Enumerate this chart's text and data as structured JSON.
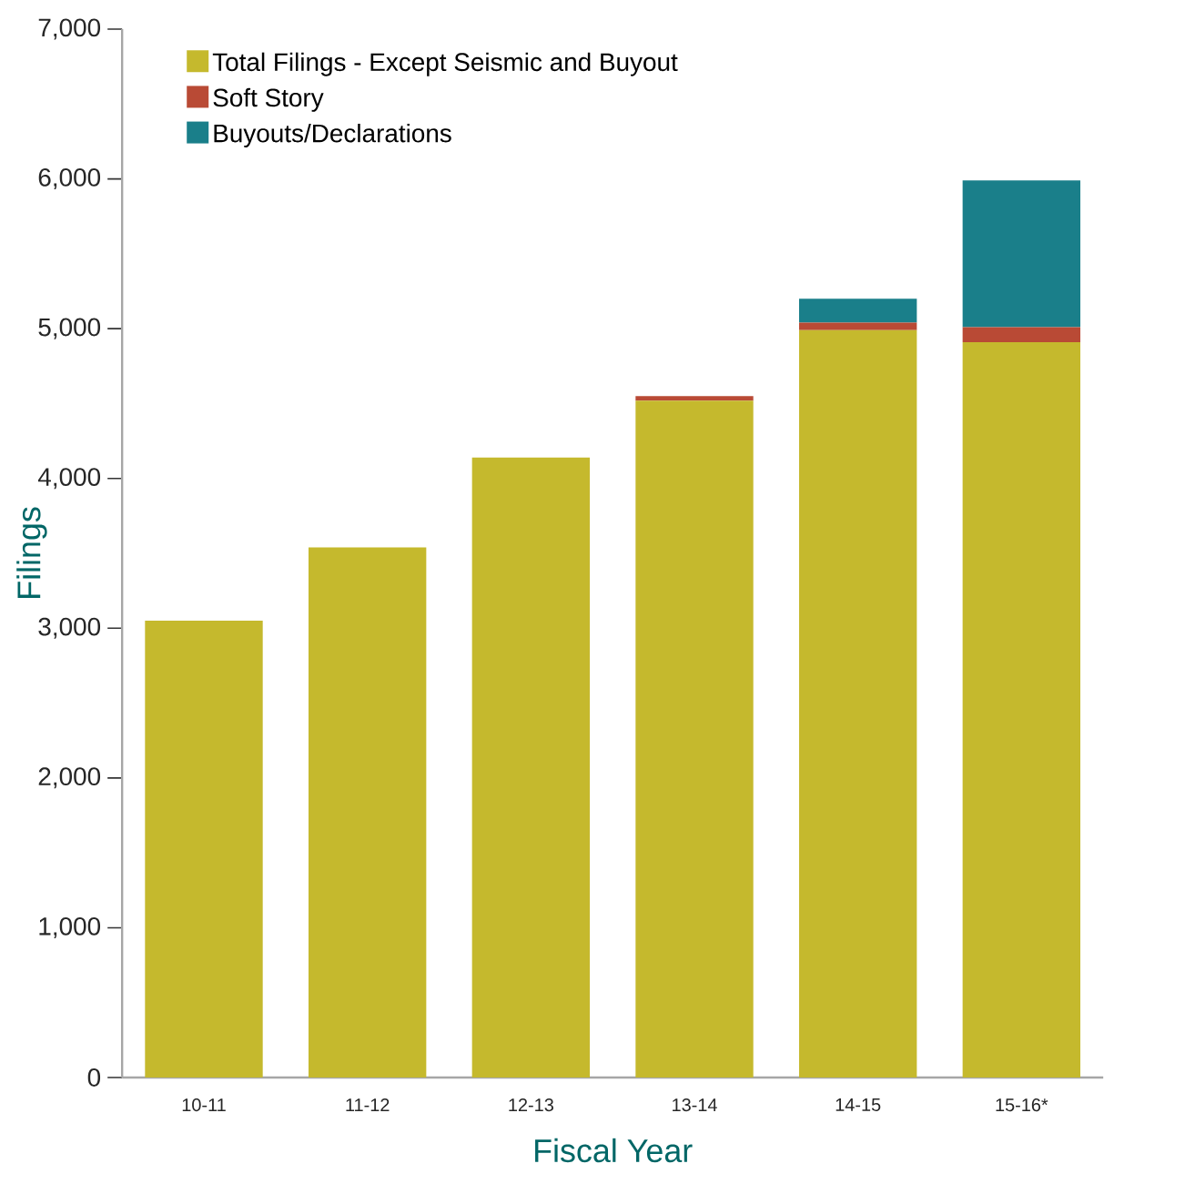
{
  "chart_data": {
    "type": "bar",
    "stacked": true,
    "xlabel": "Fiscal Year",
    "ylabel": "Filings",
    "categories": [
      "10-11",
      "11-12",
      "12-13",
      "13-14",
      "14-15",
      "15-16*"
    ],
    "series": [
      {
        "name": "Total Filings - Except Seismic and Buyout",
        "color": "#c5b92d",
        "values": [
          3050,
          3540,
          4140,
          4520,
          4990,
          4910
        ]
      },
      {
        "name": "Soft Story",
        "color": "#b94a35",
        "values": [
          0,
          0,
          0,
          30,
          50,
          100
        ]
      },
      {
        "name": "Buyouts/Declarations",
        "color": "#1a7f8a",
        "values": [
          0,
          0,
          0,
          0,
          160,
          980
        ]
      }
    ],
    "ylim": [
      0,
      7000
    ],
    "yticks": [
      0,
      {
        "value": 1000,
        "label": "1,000"
      },
      {
        "value": 2000,
        "label": "2,000"
      },
      {
        "value": 3000,
        "label": "3,000"
      },
      {
        "value": 4000,
        "label": "4,000"
      },
      {
        "value": 5000,
        "label": "5,000"
      },
      {
        "value": 6000,
        "label": "6,000"
      },
      {
        "value": 7000,
        "label": "7,000"
      }
    ],
    "grid": false,
    "legend": "top left"
  }
}
